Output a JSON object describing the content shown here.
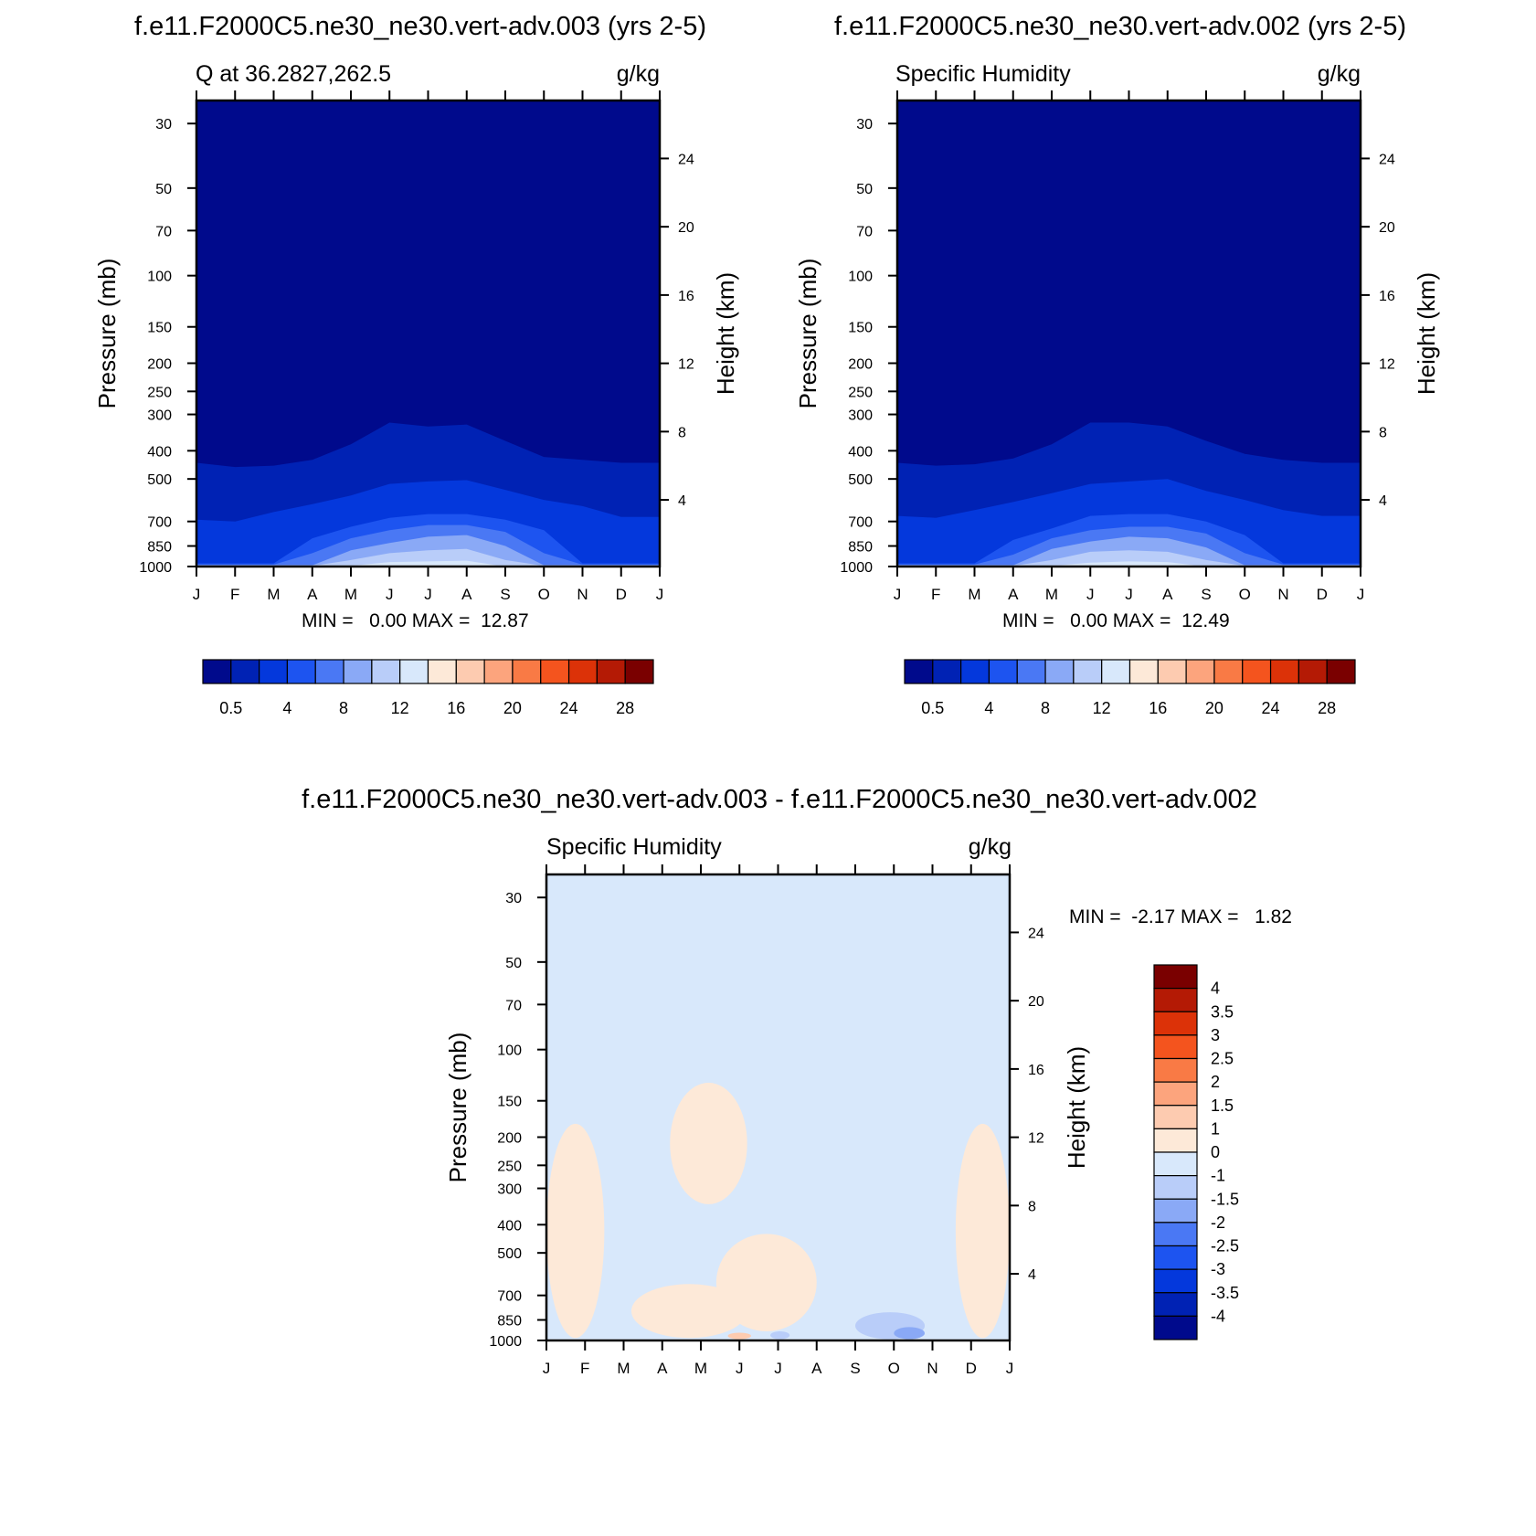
{
  "panel1": {
    "case_title": "f.e11.F2000C5.ne30_ne30.vert-adv.003 (yrs 2-5)",
    "left_label": "Q at 36.2827,262.5",
    "units": "g/kg",
    "min_max": "MIN =   0.00 MAX =  12.87",
    "ylabel": "Pressure (mb)",
    "ylabel_right": "Height (km)"
  },
  "panel2": {
    "case_title": "f.e11.F2000C5.ne30_ne30.vert-adv.002 (yrs 2-5)",
    "left_label": "Specific Humidity",
    "units": "g/kg",
    "min_max": "MIN =   0.00 MAX =  12.49",
    "ylabel": "Pressure (mb)",
    "ylabel_right": "Height (km)"
  },
  "panel3": {
    "case_title": "f.e11.F2000C5.ne30_ne30.vert-adv.003 - f.e11.F2000C5.ne30_ne30.vert-adv.002",
    "left_label": "Specific Humidity",
    "units": "g/kg",
    "min_max": "MIN =  -2.17 MAX =   1.82",
    "ylabel": "Pressure (mb)",
    "ylabel_right": "Height (km)"
  },
  "chart_data": [
    {
      "type": "heatmap",
      "xlabel": "",
      "ylabel": "Pressure (mb)",
      "ylabel_right": "Height (km)",
      "x_ticks": [
        "J",
        "F",
        "M",
        "A",
        "M",
        "J",
        "J",
        "A",
        "S",
        "O",
        "N",
        "D",
        "J"
      ],
      "pressure_ticks": [
        30,
        50,
        70,
        100,
        150,
        200,
        250,
        300,
        400,
        500,
        700,
        850,
        1000
      ],
      "height_ticks": [
        24,
        20,
        16,
        12,
        8,
        4
      ],
      "y_scale": "log",
      "ylim": [
        25,
        1000
      ],
      "legend": "bottom",
      "colorbar_labels": [
        "0.5",
        "4",
        "8",
        "12",
        "16",
        "20",
        "24",
        "28"
      ],
      "colorbar_colors": [
        "#000a8c",
        "#0022b4",
        "#0438dc",
        "#1d54f0",
        "#4a78f4",
        "#8aa9f6",
        "#b9cdf9",
        "#d8e8fb",
        "#fde9d8",
        "#fdcbb0",
        "#fca47d",
        "#f97a45",
        "#f4541e",
        "#dc3208",
        "#b41a05",
        "#7a0000"
      ],
      "contours_month_index": [
        0,
        1,
        2,
        3,
        4,
        5,
        6,
        7,
        8,
        9,
        10,
        11,
        12
      ],
      "contours_pressure": [
        {
          "level": 0.5,
          "pressure": [
            440,
            455,
            450,
            430,
            380,
            320,
            330,
            325,
            370,
            420,
            430,
            440,
            440
          ]
        },
        {
          "level": 2,
          "pressure": [
            690,
            700,
            650,
            610,
            570,
            520,
            510,
            505,
            545,
            590,
            620,
            675,
            675
          ]
        },
        {
          "level": 4,
          "pressure": [
            975,
            975,
            975,
            800,
            730,
            680,
            660,
            660,
            690,
            750,
            975,
            975,
            975
          ]
        },
        {
          "level": 6,
          "pressure": [
            985,
            985,
            985,
            900,
            800,
            750,
            720,
            720,
            760,
            900,
            985,
            985,
            985
          ]
        },
        {
          "level": 8,
          "pressure": [
            990,
            990,
            990,
            990,
            880,
            830,
            790,
            780,
            850,
            990,
            990,
            990,
            990
          ]
        },
        {
          "level": 10,
          "pressure": [
            995,
            995,
            995,
            995,
            950,
            900,
            880,
            870,
            950,
            995,
            995,
            995,
            995
          ]
        },
        {
          "level": 12,
          "pressure": [
            1000,
            1000,
            1000,
            1000,
            995,
            965,
            960,
            955,
            1000,
            1000,
            1000,
            1000,
            1000
          ]
        }
      ]
    },
    {
      "type": "heatmap",
      "xlabel": "",
      "ylabel": "Pressure (mb)",
      "ylabel_right": "Height (km)",
      "x_ticks": [
        "J",
        "F",
        "M",
        "A",
        "M",
        "J",
        "J",
        "A",
        "S",
        "O",
        "N",
        "D",
        "J"
      ],
      "pressure_ticks": [
        30,
        50,
        70,
        100,
        150,
        200,
        250,
        300,
        400,
        500,
        700,
        850,
        1000
      ],
      "height_ticks": [
        24,
        20,
        16,
        12,
        8,
        4
      ],
      "y_scale": "log",
      "ylim": [
        25,
        1000
      ],
      "legend": "bottom",
      "colorbar_labels": [
        "0.5",
        "4",
        "8",
        "12",
        "16",
        "20",
        "24",
        "28"
      ],
      "colorbar_colors": [
        "#000a8c",
        "#0022b4",
        "#0438dc",
        "#1d54f0",
        "#4a78f4",
        "#8aa9f6",
        "#b9cdf9",
        "#d8e8fb",
        "#fde9d8",
        "#fdcbb0",
        "#fca47d",
        "#f97a45",
        "#f4541e",
        "#dc3208",
        "#b41a05",
        "#7a0000"
      ],
      "contours_month_index": [
        0,
        1,
        2,
        3,
        4,
        5,
        6,
        7,
        8,
        9,
        10,
        11,
        12
      ],
      "contours_pressure": [
        {
          "level": 0.5,
          "pressure": [
            440,
            450,
            445,
            425,
            380,
            320,
            320,
            330,
            370,
            410,
            430,
            440,
            440
          ]
        },
        {
          "level": 2,
          "pressure": [
            670,
            680,
            640,
            600,
            560,
            520,
            510,
            500,
            550,
            590,
            640,
            670,
            670
          ]
        },
        {
          "level": 4,
          "pressure": [
            975,
            975,
            975,
            810,
            740,
            670,
            660,
            660,
            700,
            780,
            975,
            975,
            975
          ]
        },
        {
          "level": 6,
          "pressure": [
            985,
            985,
            985,
            910,
            800,
            750,
            730,
            730,
            770,
            900,
            985,
            985,
            985
          ]
        },
        {
          "level": 8,
          "pressure": [
            990,
            990,
            990,
            990,
            870,
            820,
            790,
            800,
            860,
            990,
            990,
            990,
            990
          ]
        },
        {
          "level": 10,
          "pressure": [
            995,
            995,
            995,
            995,
            950,
            890,
            880,
            890,
            950,
            995,
            995,
            995,
            995
          ]
        },
        {
          "level": 12,
          "pressure": [
            1000,
            1000,
            1000,
            1000,
            995,
            970,
            960,
            965,
            1000,
            1000,
            1000,
            1000,
            1000
          ]
        }
      ]
    },
    {
      "type": "heatmap",
      "xlabel": "",
      "ylabel": "Pressure (mb)",
      "ylabel_right": "Height (km)",
      "x_ticks": [
        "J",
        "F",
        "M",
        "A",
        "M",
        "J",
        "J",
        "A",
        "S",
        "O",
        "N",
        "D",
        "J"
      ],
      "pressure_ticks": [
        30,
        50,
        70,
        100,
        150,
        200,
        250,
        300,
        400,
        500,
        700,
        850,
        1000
      ],
      "height_ticks": [
        24,
        20,
        16,
        12,
        8,
        4
      ],
      "y_scale": "log",
      "ylim": [
        25,
        1000
      ],
      "legend": "right",
      "background_value": "0 to -1",
      "colorbar_labels": [
        "4",
        "3.5",
        "3",
        "2.5",
        "2",
        "1.5",
        "1",
        "0",
        "-1",
        "-1.5",
        "-2",
        "-2.5",
        "-3",
        "-3.5",
        "-4"
      ],
      "colorbar_colors": [
        "#7a0000",
        "#b41a05",
        "#dc3208",
        "#f4541e",
        "#f97a45",
        "#fca47d",
        "#fdcbb0",
        "#fde9d8",
        "#d8e8fb",
        "#b9cdf9",
        "#8aa9f6",
        "#4a78f4",
        "#1d54f0",
        "#0438dc",
        "#0022b4",
        "#000a8c"
      ],
      "positive_regions": [
        {
          "months": [
            0.0,
            1.5
          ],
          "pressure": [
            180,
            980
          ],
          "value": "0 to 1"
        },
        {
          "months": [
            3.2,
            5.2
          ],
          "pressure": [
            130,
            340
          ],
          "value": "0 to 1"
        },
        {
          "months": [
            4.4,
            7.0
          ],
          "pressure": [
            430,
            930
          ],
          "value": "0 to 1"
        },
        {
          "months": [
            2.2,
            5.2
          ],
          "pressure": [
            640,
            980
          ],
          "value": "0 to 1"
        },
        {
          "months": [
            4.7,
            5.3
          ],
          "pressure": [
            940,
            990
          ],
          "value": "1 to 1.5"
        },
        {
          "months": [
            10.6,
            12.0
          ],
          "pressure": [
            180,
            980
          ],
          "value": "0 to 1"
        }
      ],
      "negative_regions": [
        {
          "months": [
            8.0,
            9.8
          ],
          "pressure": [
            800,
            990
          ],
          "value": "-1 to -1.5"
        },
        {
          "months": [
            9.0,
            9.8
          ],
          "pressure": [
            900,
            990
          ],
          "value": "-1.5 to -2"
        },
        {
          "months": [
            5.8,
            6.3
          ],
          "pressure": [
            930,
            990
          ],
          "value": "-1 to -1.5"
        }
      ]
    }
  ]
}
